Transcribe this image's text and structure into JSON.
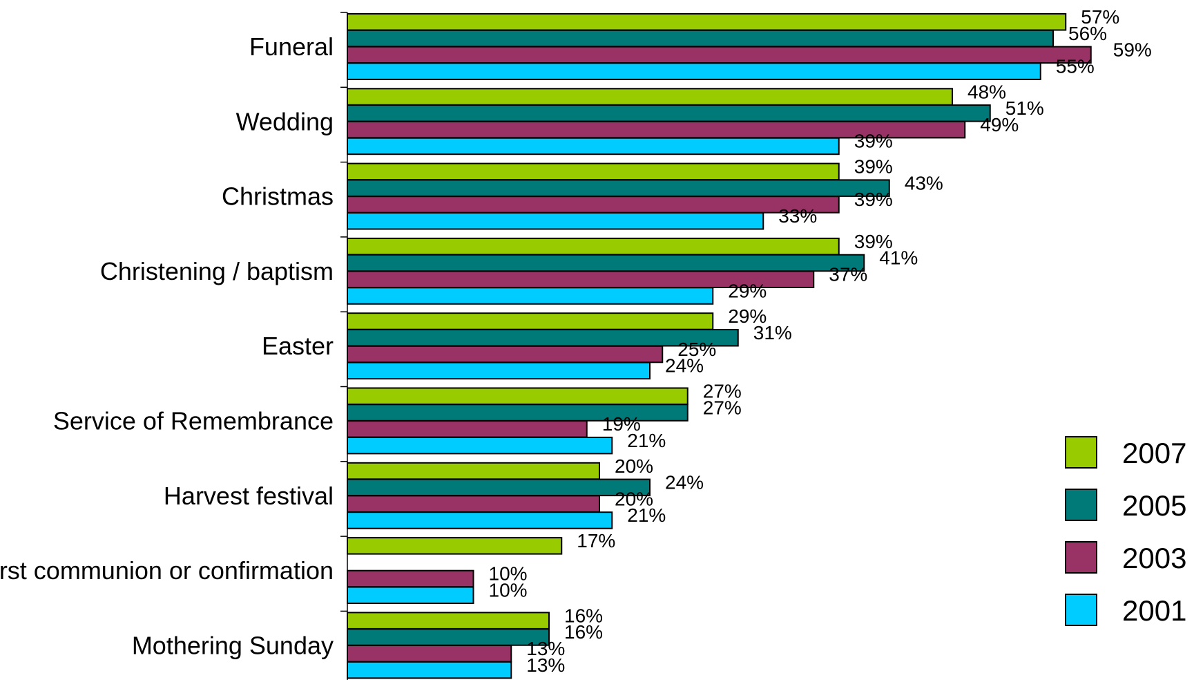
{
  "chart_data": {
    "type": "bar",
    "orientation": "horizontal",
    "categories": [
      "Funeral",
      "Wedding",
      "Christmas",
      "Christening / baptism",
      "Easter",
      "Service of Remembrance",
      "Harvest festival",
      "First communion or confirmation",
      "Mothering Sunday"
    ],
    "series": [
      {
        "name": "2007",
        "color": "#99cc00",
        "values": [
          57,
          48,
          39,
          39,
          29,
          27,
          20,
          17,
          16
        ]
      },
      {
        "name": "2005",
        "color": "#007a78",
        "values": [
          56,
          51,
          43,
          41,
          31,
          27,
          24,
          null,
          16
        ]
      },
      {
        "name": "2003",
        "color": "#993366",
        "values": [
          59,
          49,
          39,
          37,
          25,
          19,
          20,
          10,
          13
        ]
      },
      {
        "name": "2001",
        "color": "#00ccff",
        "values": [
          55,
          39,
          33,
          29,
          24,
          21,
          21,
          10,
          13
        ]
      }
    ],
    "data_labels": [
      [
        "57%",
        "56%",
        "59%",
        "55%"
      ],
      [
        "48%",
        "51%",
        "49%",
        "39%"
      ],
      [
        "39%",
        "43%",
        "39%",
        "33%"
      ],
      [
        "39%",
        "41%",
        "37%",
        "29%"
      ],
      [
        "29%",
        "31%",
        "25%",
        "24%"
      ],
      [
        "27%",
        "27%",
        "19%",
        "21%"
      ],
      [
        "20%",
        "24%",
        "20%",
        "21%"
      ],
      [
        "17%",
        "",
        "10%",
        "10%"
      ],
      [
        "16%",
        "16%",
        "13%",
        "13%"
      ]
    ],
    "legend": {
      "position": "right",
      "entries": [
        "2007",
        "2005",
        "2003",
        "2001"
      ]
    },
    "xlim": [
      0,
      60
    ],
    "grid": false
  }
}
